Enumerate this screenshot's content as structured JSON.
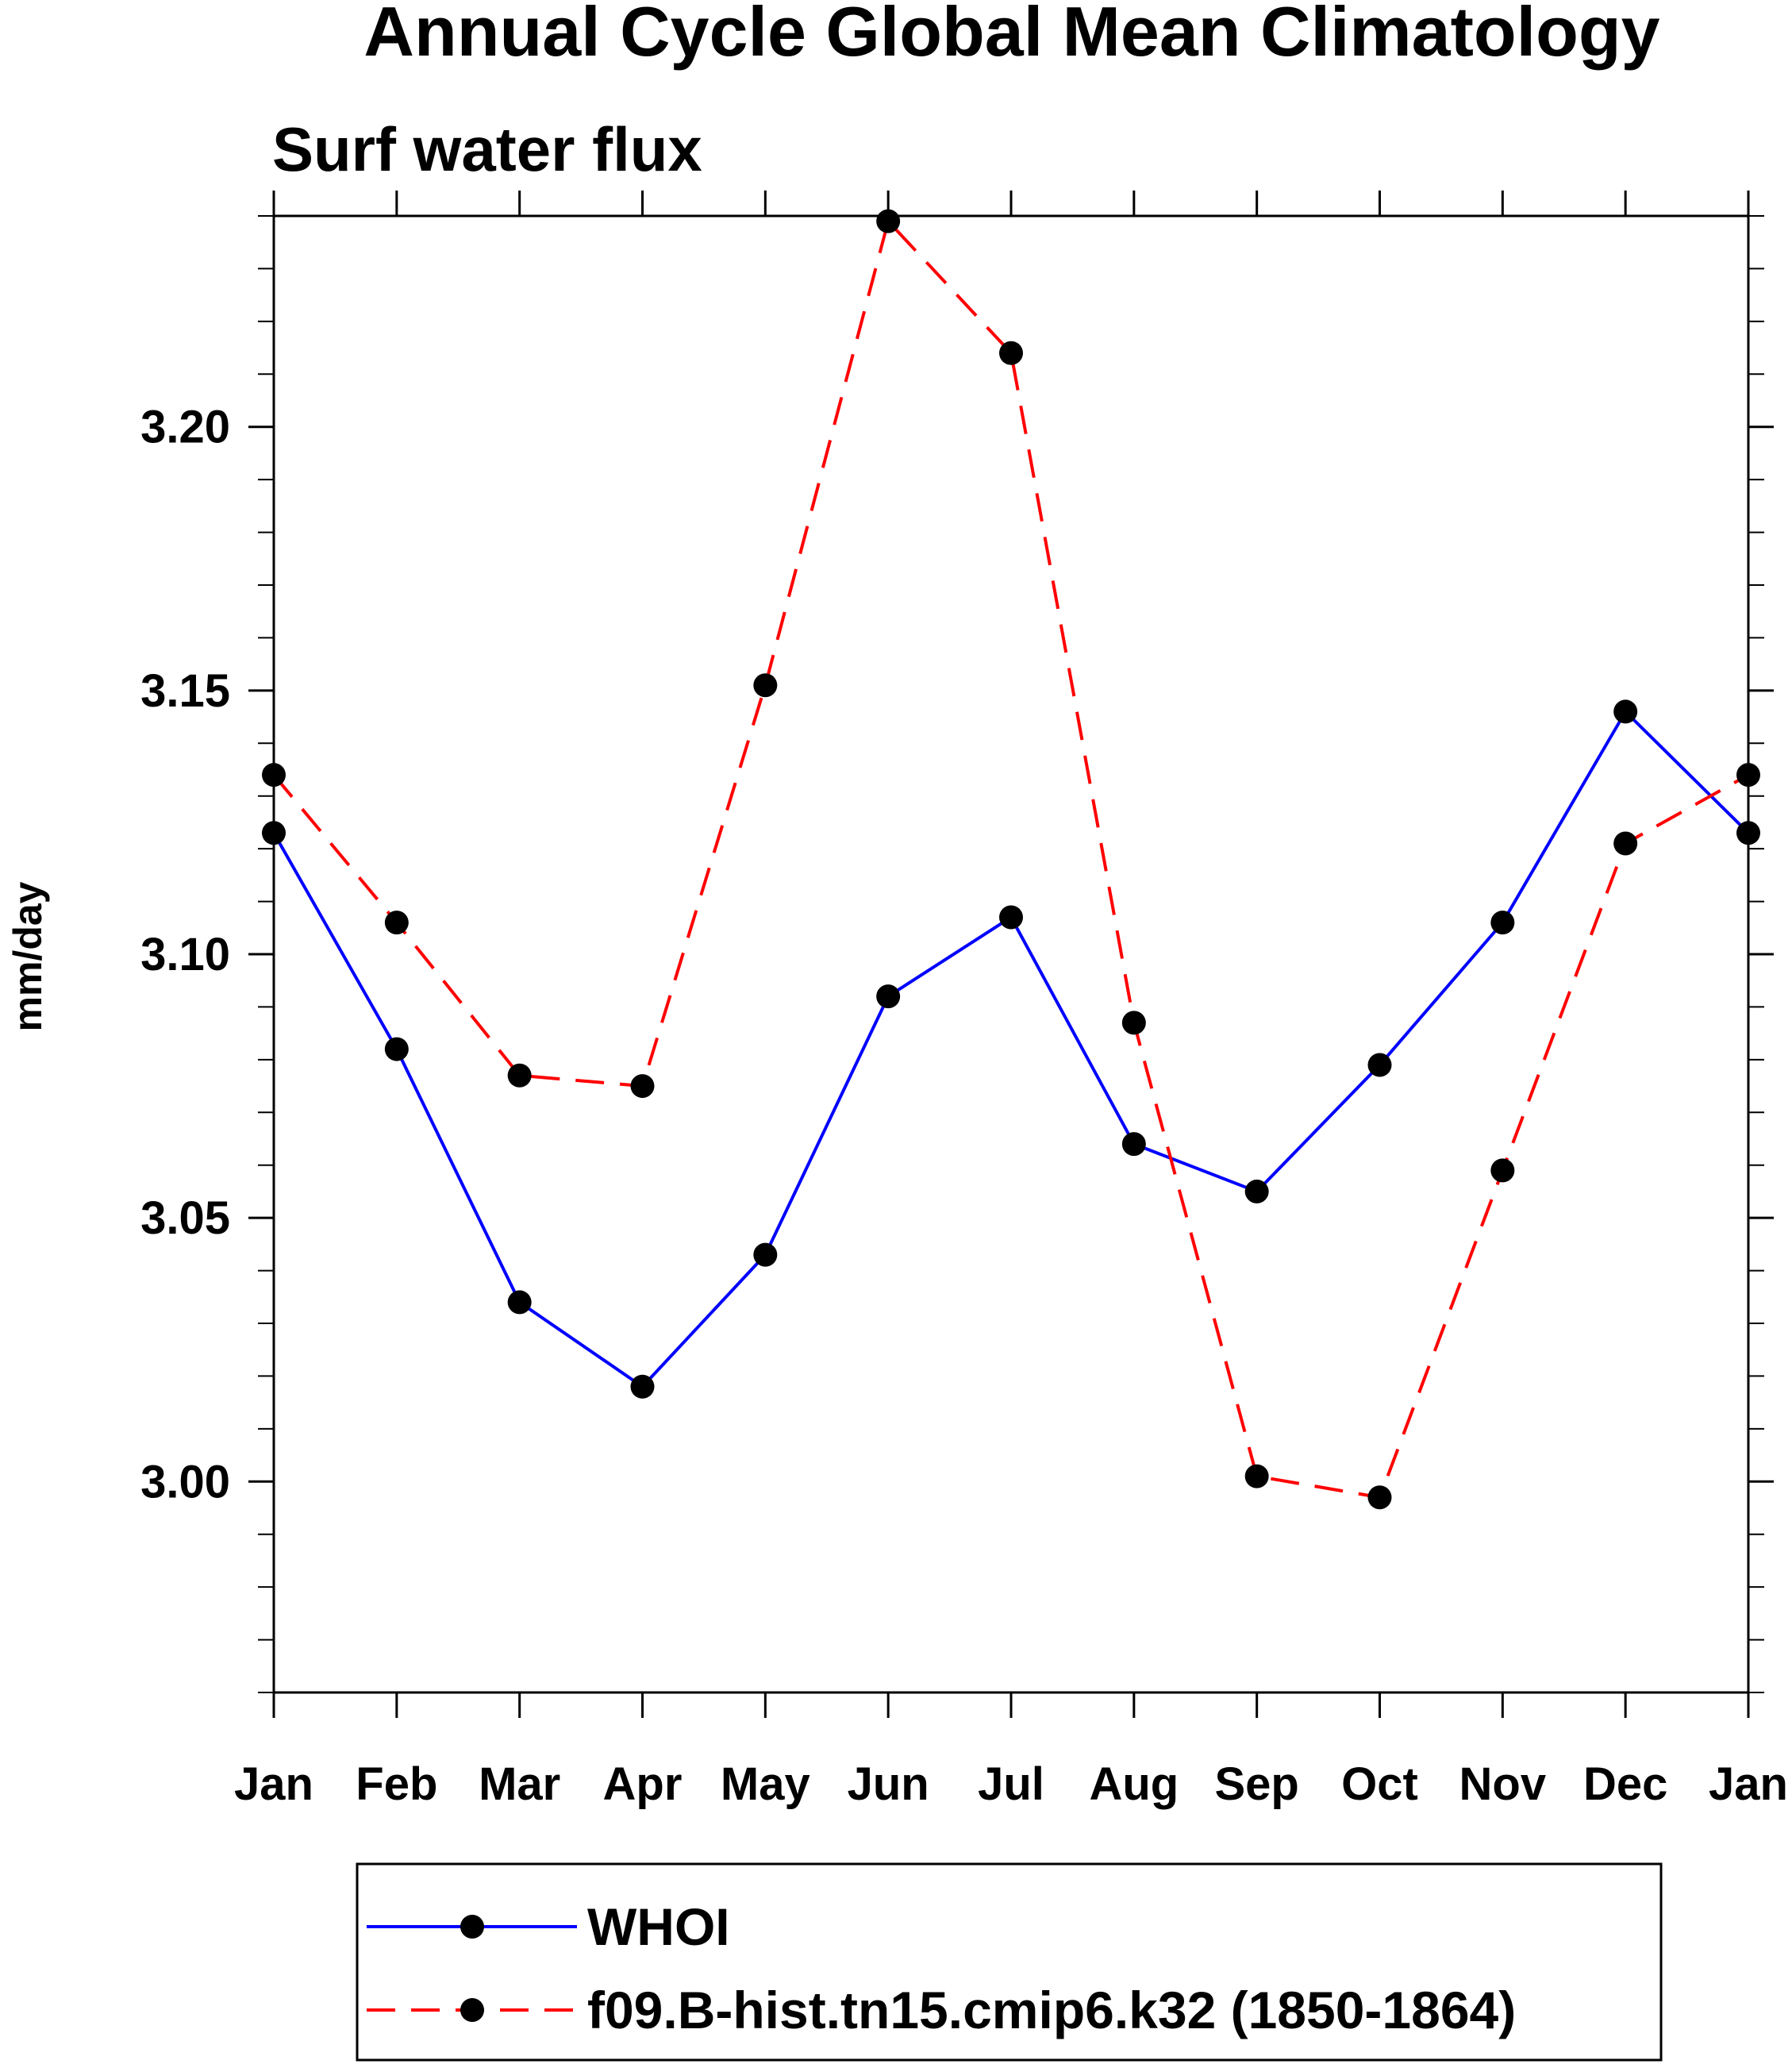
{
  "chart_data": {
    "type": "line",
    "title": "Annual Cycle Global Mean Climatology",
    "subtitle": "Surf water flux",
    "xlabel": "",
    "ylabel": "mm/day",
    "categories": [
      "Jan",
      "Feb",
      "Mar",
      "Apr",
      "May",
      "Jun",
      "Jul",
      "Aug",
      "Sep",
      "Oct",
      "Nov",
      "Dec",
      "Jan"
    ],
    "ylim": [
      2.96,
      3.24
    ],
    "yticks": [
      3.0,
      3.05,
      3.1,
      3.15,
      3.2
    ],
    "ytick_labels": [
      "3.00",
      "3.05",
      "3.10",
      "3.15",
      "3.20"
    ],
    "y_minor_step": 0.01,
    "series": [
      {
        "name": "WHOI",
        "color": "#0000ff",
        "dash": "solid",
        "values": [
          3.123,
          3.082,
          3.034,
          3.018,
          3.043,
          3.092,
          3.107,
          3.064,
          3.055,
          3.079,
          3.106,
          3.146,
          3.123
        ]
      },
      {
        "name": "f09.B-hist.tn15.cmip6.k32 (1850-1864)",
        "color": "#ff0000",
        "dash": "dashed",
        "values": [
          3.134,
          3.106,
          3.077,
          3.075,
          3.151,
          3.239,
          3.214,
          3.087,
          3.001,
          2.997,
          3.059,
          3.121,
          3.134
        ]
      }
    ],
    "legend_position": "bottom-center",
    "grid": false
  }
}
